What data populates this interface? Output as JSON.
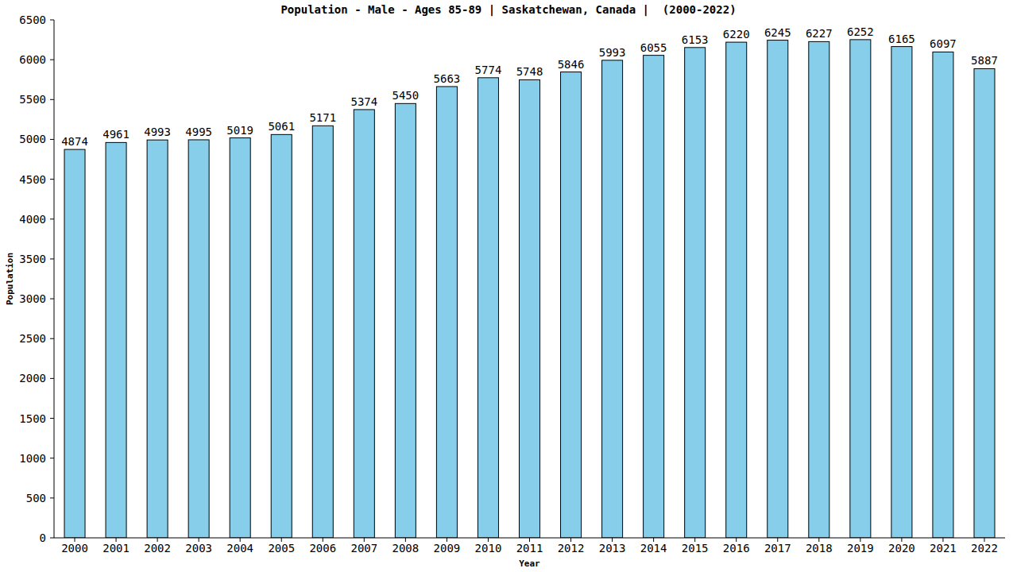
{
  "chart_data": {
    "type": "bar",
    "title": "Population - Male - Ages 85-89 | Saskatchewan, Canada |  (2000-2022)",
    "x_label": "Year",
    "y_label": "Population",
    "categories": [
      "2000",
      "2001",
      "2002",
      "2003",
      "2004",
      "2005",
      "2006",
      "2007",
      "2008",
      "2009",
      "2010",
      "2011",
      "2012",
      "2013",
      "2014",
      "2015",
      "2016",
      "2017",
      "2018",
      "2019",
      "2020",
      "2021",
      "2022"
    ],
    "values": [
      4874,
      4961,
      4993,
      4995,
      5019,
      5061,
      5171,
      5374,
      5450,
      5663,
      5774,
      5748,
      5846,
      5993,
      6055,
      6153,
      6220,
      6245,
      6227,
      6252,
      6165,
      6097,
      5887
    ],
    "color": "#87ceeb",
    "ylim": [
      0,
      6500
    ],
    "yticks": [
      0,
      500,
      1000,
      1500,
      2000,
      2500,
      3000,
      3500,
      4000,
      4500,
      5000,
      5500,
      6000,
      6500
    ],
    "grid": false,
    "data_labels": true
  }
}
